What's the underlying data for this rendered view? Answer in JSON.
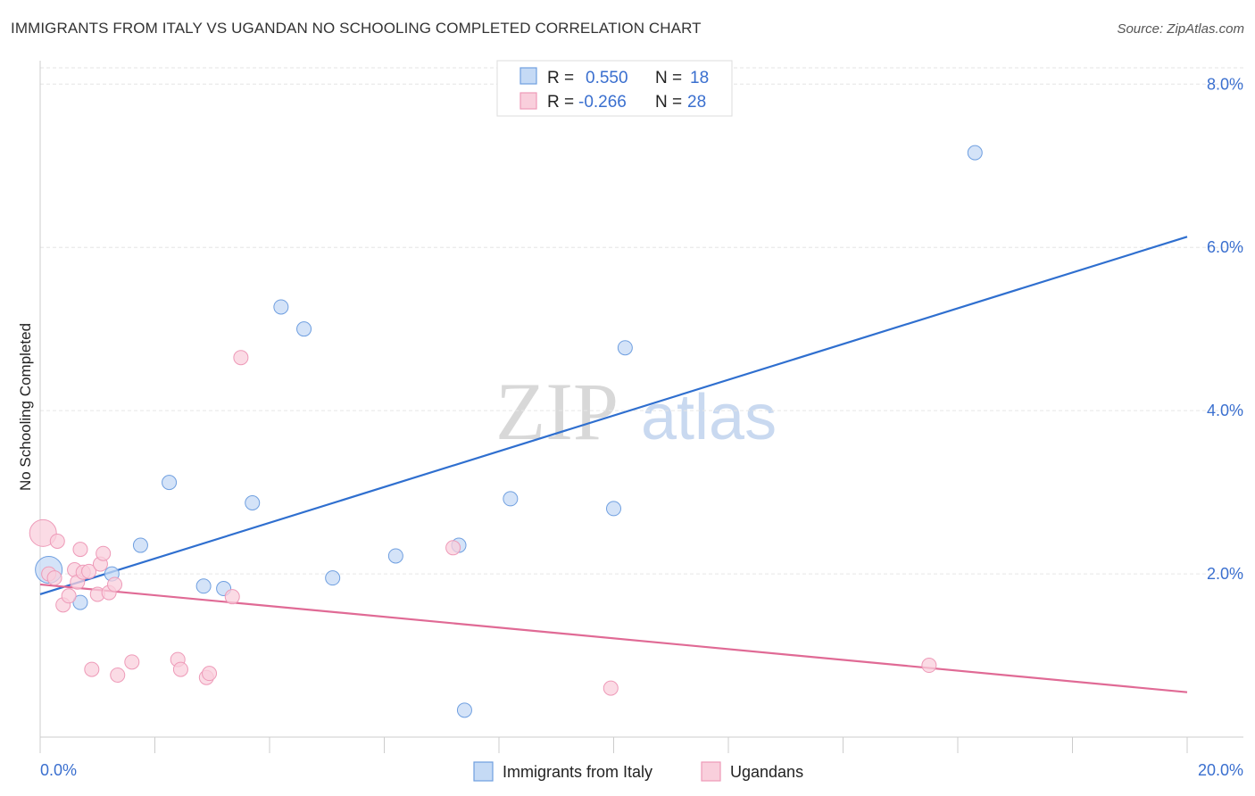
{
  "header": {
    "title": "IMMIGRANTS FROM ITALY VS UGANDAN NO SCHOOLING COMPLETED CORRELATION CHART",
    "source": "Source: ZipAtlas.com"
  },
  "watermark": {
    "zip": "ZIP",
    "atlas": "atlas"
  },
  "legend": {
    "rows": [
      {
        "r_label": "R = ",
        "r_value": "0.550",
        "n_label": "N = ",
        "n_value": "18"
      },
      {
        "r_label": "R = ",
        "r_value": "-0.266",
        "n_label": "N = ",
        "n_value": "28"
      }
    ]
  },
  "chart_data": {
    "type": "scatter",
    "title": "IMMIGRANTS FROM ITALY VS UGANDAN NO SCHOOLING COMPLETED CORRELATION CHART",
    "xlabel": "",
    "ylabel": "No Schooling Completed",
    "xlim": [
      0,
      20
    ],
    "ylim": [
      0,
      8.2
    ],
    "x_tick_labels": [
      "0.0%",
      "20.0%"
    ],
    "y_ticks": [
      2,
      4,
      6,
      8
    ],
    "y_tick_labels": [
      "2.0%",
      "4.0%",
      "6.0%",
      "8.0%"
    ],
    "grid": true,
    "legend_position": "top-center",
    "colors": {
      "italy": "#6f9fe0",
      "italy_fill": "#c5daf5",
      "italy_line": "#2f6fcf",
      "ugandans": "#ee9ab8",
      "ugandans_fill": "#f9cfdc",
      "ugandans_line": "#e06a95"
    },
    "series": [
      {
        "name": "Immigrants from Italy",
        "r": 0.55,
        "n": 18,
        "points": [
          {
            "x": 0.15,
            "y": 2.05,
            "big": true
          },
          {
            "x": 0.7,
            "y": 1.65
          },
          {
            "x": 1.25,
            "y": 2.0
          },
          {
            "x": 1.75,
            "y": 2.35
          },
          {
            "x": 2.25,
            "y": 3.12
          },
          {
            "x": 2.85,
            "y": 1.85
          },
          {
            "x": 3.2,
            "y": 1.82
          },
          {
            "x": 3.7,
            "y": 2.87
          },
          {
            "x": 4.2,
            "y": 5.27
          },
          {
            "x": 4.6,
            "y": 5.0
          },
          {
            "x": 5.1,
            "y": 1.95
          },
          {
            "x": 6.2,
            "y": 2.22
          },
          {
            "x": 7.3,
            "y": 2.35
          },
          {
            "x": 7.4,
            "y": 0.33
          },
          {
            "x": 8.2,
            "y": 2.92
          },
          {
            "x": 10.0,
            "y": 2.8
          },
          {
            "x": 10.2,
            "y": 4.77
          },
          {
            "x": 16.3,
            "y": 7.16
          }
        ],
        "trend": {
          "x": [
            0,
            20
          ],
          "y": [
            1.75,
            6.13
          ]
        }
      },
      {
        "name": "Ugandans",
        "r": -0.266,
        "n": 28,
        "points": [
          {
            "x": 0.05,
            "y": 2.5,
            "big": true
          },
          {
            "x": 0.15,
            "y": 2.0
          },
          {
            "x": 0.25,
            "y": 1.95
          },
          {
            "x": 0.3,
            "y": 2.4
          },
          {
            "x": 0.4,
            "y": 1.62
          },
          {
            "x": 0.5,
            "y": 1.73
          },
          {
            "x": 0.6,
            "y": 2.05
          },
          {
            "x": 0.65,
            "y": 1.9
          },
          {
            "x": 0.7,
            "y": 2.3
          },
          {
            "x": 0.75,
            "y": 2.02
          },
          {
            "x": 0.85,
            "y": 2.03
          },
          {
            "x": 0.9,
            "y": 0.83
          },
          {
            "x": 1.0,
            "y": 1.75
          },
          {
            "x": 1.05,
            "y": 2.12
          },
          {
            "x": 1.1,
            "y": 2.25
          },
          {
            "x": 1.2,
            "y": 1.77
          },
          {
            "x": 1.3,
            "y": 1.87
          },
          {
            "x": 1.35,
            "y": 0.76
          },
          {
            "x": 1.6,
            "y": 0.92
          },
          {
            "x": 2.4,
            "y": 0.95
          },
          {
            "x": 2.45,
            "y": 0.83
          },
          {
            "x": 2.9,
            "y": 0.73
          },
          {
            "x": 2.95,
            "y": 0.78
          },
          {
            "x": 3.35,
            "y": 1.72
          },
          {
            "x": 3.5,
            "y": 4.65
          },
          {
            "x": 7.2,
            "y": 2.32
          },
          {
            "x": 9.95,
            "y": 0.6
          },
          {
            "x": 15.5,
            "y": 0.88
          }
        ],
        "trend": {
          "x": [
            0,
            20
          ],
          "y": [
            1.87,
            0.55
          ]
        }
      }
    ]
  }
}
